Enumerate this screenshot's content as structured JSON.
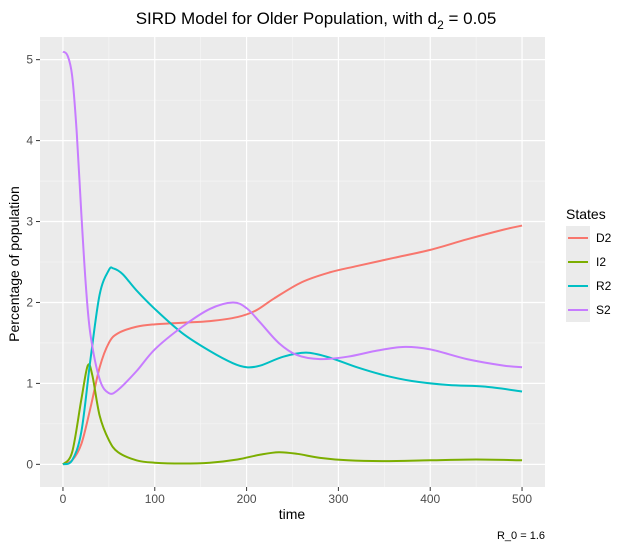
{
  "chart_data": {
    "type": "line",
    "title": "SIRD Model for Older Population, with d",
    "title_subscript": "2",
    "title_suffix": " = 0.05",
    "xlabel": "time",
    "ylabel": "Percentage of population",
    "caption": "R_0 = 1.6",
    "xlim": [
      -25,
      525
    ],
    "ylim": [
      -0.28,
      5.28
    ],
    "x_ticks": [
      0,
      100,
      200,
      300,
      400,
      500
    ],
    "y_ticks": [
      0,
      1,
      2,
      3,
      4,
      5
    ],
    "grid": true,
    "legend": {
      "title": "States",
      "position": "right"
    },
    "series": [
      {
        "name": "D2",
        "color": "#F8766D",
        "points": [
          [
            0,
            0
          ],
          [
            10,
            0.05
          ],
          [
            20,
            0.25
          ],
          [
            30,
            0.7
          ],
          [
            40,
            1.2
          ],
          [
            50,
            1.5
          ],
          [
            60,
            1.62
          ],
          [
            80,
            1.7
          ],
          [
            100,
            1.73
          ],
          [
            130,
            1.75
          ],
          [
            160,
            1.77
          ],
          [
            190,
            1.82
          ],
          [
            210,
            1.9
          ],
          [
            230,
            2.05
          ],
          [
            260,
            2.25
          ],
          [
            290,
            2.37
          ],
          [
            320,
            2.45
          ],
          [
            360,
            2.55
          ],
          [
            400,
            2.65
          ],
          [
            440,
            2.78
          ],
          [
            480,
            2.9
          ],
          [
            500,
            2.95
          ]
        ]
      },
      {
        "name": "I2",
        "color": "#7CAE00",
        "points": [
          [
            0,
            0
          ],
          [
            10,
            0.15
          ],
          [
            20,
            0.8
          ],
          [
            27,
            1.22
          ],
          [
            32,
            1.1
          ],
          [
            40,
            0.6
          ],
          [
            50,
            0.3
          ],
          [
            60,
            0.15
          ],
          [
            80,
            0.05
          ],
          [
            100,
            0.02
          ],
          [
            130,
            0.01
          ],
          [
            160,
            0.02
          ],
          [
            190,
            0.06
          ],
          [
            215,
            0.12
          ],
          [
            235,
            0.15
          ],
          [
            255,
            0.13
          ],
          [
            280,
            0.08
          ],
          [
            310,
            0.05
          ],
          [
            350,
            0.04
          ],
          [
            400,
            0.05
          ],
          [
            450,
            0.06
          ],
          [
            500,
            0.05
          ]
        ]
      },
      {
        "name": "R2",
        "color": "#00BFC4",
        "points": [
          [
            0,
            0
          ],
          [
            10,
            0.05
          ],
          [
            20,
            0.4
          ],
          [
            30,
            1.3
          ],
          [
            40,
            2.1
          ],
          [
            50,
            2.4
          ],
          [
            55,
            2.42
          ],
          [
            65,
            2.35
          ],
          [
            80,
            2.15
          ],
          [
            100,
            1.92
          ],
          [
            130,
            1.62
          ],
          [
            160,
            1.4
          ],
          [
            185,
            1.25
          ],
          [
            200,
            1.2
          ],
          [
            215,
            1.22
          ],
          [
            240,
            1.33
          ],
          [
            265,
            1.38
          ],
          [
            290,
            1.32
          ],
          [
            320,
            1.2
          ],
          [
            350,
            1.1
          ],
          [
            380,
            1.03
          ],
          [
            420,
            0.98
          ],
          [
            460,
            0.96
          ],
          [
            500,
            0.9
          ]
        ]
      },
      {
        "name": "S2",
        "color": "#C77CFF",
        "points": [
          [
            0,
            5.1
          ],
          [
            5,
            5.05
          ],
          [
            10,
            4.8
          ],
          [
            15,
            4.1
          ],
          [
            20,
            3.1
          ],
          [
            25,
            2.2
          ],
          [
            30,
            1.6
          ],
          [
            40,
            1.05
          ],
          [
            50,
            0.88
          ],
          [
            60,
            0.92
          ],
          [
            80,
            1.15
          ],
          [
            100,
            1.42
          ],
          [
            130,
            1.7
          ],
          [
            160,
            1.92
          ],
          [
            185,
            2.0
          ],
          [
            200,
            1.93
          ],
          [
            215,
            1.75
          ],
          [
            235,
            1.5
          ],
          [
            255,
            1.35
          ],
          [
            280,
            1.3
          ],
          [
            310,
            1.33
          ],
          [
            340,
            1.4
          ],
          [
            370,
            1.45
          ],
          [
            400,
            1.42
          ],
          [
            440,
            1.3
          ],
          [
            480,
            1.22
          ],
          [
            500,
            1.2
          ]
        ]
      }
    ]
  }
}
